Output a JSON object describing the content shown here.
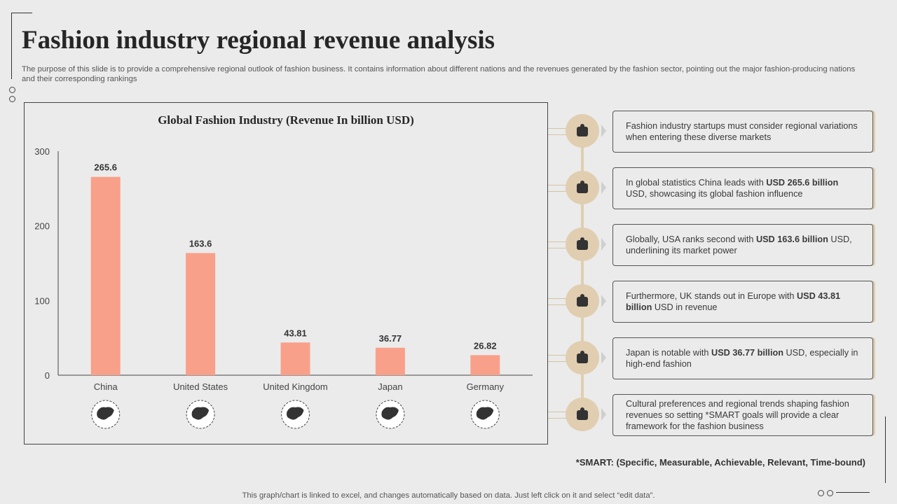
{
  "title": "Fashion industry regional revenue analysis",
  "subtitle": "The purpose of this slide is to provide a comprehensive regional outlook of fashion business. It contains information about different nations and the revenues generated by the fashion sector, pointing out the major fashion-producing nations and their corresponding rankings",
  "chart_data": {
    "type": "bar",
    "title": "Global Fashion Industry (Revenue In billion USD)",
    "categories": [
      "China",
      "United States",
      "United Kingdom",
      "Japan",
      "Germany"
    ],
    "values": [
      265.6,
      163.6,
      43.81,
      36.77,
      26.82
    ],
    "value_labels": [
      "265.6",
      "163.6",
      "43.81",
      "36.77",
      "26.82"
    ],
    "ylim": [
      0,
      300
    ],
    "yticks": [
      "0",
      "100",
      "200",
      "300"
    ],
    "grid": false,
    "bar_color": "#f9a08a",
    "category_icons": [
      "china-map-icon",
      "usa-map-icon",
      "uk-map-icon",
      "japan-map-icon",
      "germany-map-icon"
    ]
  },
  "insights": [
    {
      "icon": "dress-handbag-icon",
      "parts": [
        {
          "text": "Fashion industry startups must consider regional variations when entering these diverse markets",
          "bold": false
        }
      ]
    },
    {
      "icon": "presentation-chart-icon",
      "parts": [
        {
          "text": "In global statistics China leads with ",
          "bold": false
        },
        {
          "text": "USD 265.6 billion",
          "bold": true
        },
        {
          "text": " USD, showcasing its global fashion influence",
          "bold": false
        }
      ]
    },
    {
      "icon": "globe-hand-icon",
      "parts": [
        {
          "text": "Globally, USA ranks second with ",
          "bold": false
        },
        {
          "text": "USD 163.6 billion",
          "bold": true
        },
        {
          "text": " USD, underlining its market power",
          "bold": false
        }
      ]
    },
    {
      "icon": "growth-chart-gear-icon",
      "parts": [
        {
          "text": "Furthermore, UK stands out in Europe with ",
          "bold": false
        },
        {
          "text": "USD 43.81 billion",
          "bold": true
        },
        {
          "text": " USD in revenue",
          "bold": false
        }
      ]
    },
    {
      "icon": "dress-mannequin-icon",
      "parts": [
        {
          "text": "Japan is notable with ",
          "bold": false
        },
        {
          "text": "USD 36.77 billion",
          "bold": true
        },
        {
          "text": " USD, especially in high-end fashion",
          "bold": false
        }
      ]
    },
    {
      "icon": "people-globe-icon",
      "parts": [
        {
          "text": "Cultural preferences and regional trends shaping fashion revenues so setting *SMART goals will provide a clear framework for the fashion business",
          "bold": false
        }
      ]
    }
  ],
  "smart_note": "*SMART: (Specific, Measurable, Achievable, Relevant, Time-bound)",
  "footer": "This graph/chart is linked to excel, and changes automatically based on data. Just left click on it and select “edit data”.",
  "colors": {
    "accent": "#e1ceb0",
    "bar": "#f9a08a",
    "text": "#262626"
  }
}
